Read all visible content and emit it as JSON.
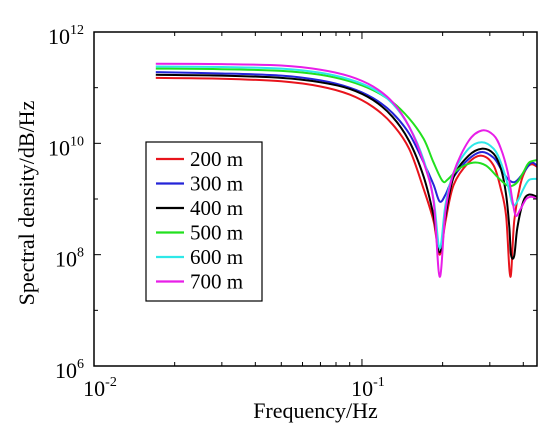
{
  "chart_data": {
    "type": "line",
    "title": "",
    "xlabel": "Frequency/Hz",
    "ylabel": "Spectral density/dB/Hz",
    "x_scale": "log",
    "y_scale": "log",
    "xlim": [
      0.01,
      0.45
    ],
    "ylim": [
      1000000,
      1000000000000
    ],
    "x_ticks": [
      {
        "value": 0.01,
        "base": "10",
        "exp": "-2"
      },
      {
        "value": 0.1,
        "base": "10",
        "exp": "-1"
      }
    ],
    "y_ticks": [
      {
        "value": 1000000,
        "base": "10",
        "exp": "6"
      },
      {
        "value": 100000000,
        "base": "10",
        "exp": "8"
      },
      {
        "value": 10000000000,
        "base": "10",
        "exp": "10"
      },
      {
        "value": 1000000000000,
        "base": "10",
        "exp": "12"
      }
    ],
    "grid": false,
    "legend_position": "middle-left",
    "series": [
      {
        "name": "200 m",
        "color": "#e8141c",
        "points": [
          [
            0.017,
            150000000000
          ],
          [
            0.03,
            145000000000
          ],
          [
            0.05,
            130000000000
          ],
          [
            0.07,
            105000000000
          ],
          [
            0.09,
            75000000000
          ],
          [
            0.11,
            45000000000
          ],
          [
            0.13,
            22000000000
          ],
          [
            0.15,
            8000000000
          ],
          [
            0.17,
            1500000000
          ],
          [
            0.185,
            400000000
          ],
          [
            0.195,
            100000000
          ],
          [
            0.205,
            400000000
          ],
          [
            0.22,
            1800000000
          ],
          [
            0.25,
            4500000000
          ],
          [
            0.28,
            6000000000
          ],
          [
            0.31,
            4000000000
          ],
          [
            0.33,
            1500000000
          ],
          [
            0.345,
            500000000
          ],
          [
            0.358,
            40000000
          ],
          [
            0.37,
            400000000
          ],
          [
            0.39,
            1800000000
          ],
          [
            0.41,
            3500000000
          ],
          [
            0.43,
            4200000000
          ],
          [
            0.45,
            3800000000
          ]
        ]
      },
      {
        "name": "300 m",
        "color": "#2424d8",
        "points": [
          [
            0.017,
            190000000000
          ],
          [
            0.03,
            180000000000
          ],
          [
            0.05,
            165000000000
          ],
          [
            0.07,
            135000000000
          ],
          [
            0.09,
            100000000000
          ],
          [
            0.11,
            65000000000
          ],
          [
            0.13,
            35000000000
          ],
          [
            0.15,
            15000000000
          ],
          [
            0.17,
            4500000000
          ],
          [
            0.185,
            1800000000
          ],
          [
            0.195,
            900000000
          ],
          [
            0.205,
            1200000000
          ],
          [
            0.22,
            2500000000
          ],
          [
            0.25,
            5200000000
          ],
          [
            0.28,
            7000000000
          ],
          [
            0.31,
            5500000000
          ],
          [
            0.33,
            3500000000
          ],
          [
            0.35,
            2300000000
          ],
          [
            0.37,
            2000000000
          ],
          [
            0.39,
            2500000000
          ],
          [
            0.41,
            3500000000
          ],
          [
            0.43,
            4500000000
          ],
          [
            0.45,
            4000000000
          ]
        ]
      },
      {
        "name": "400 m",
        "color": "#000000",
        "points": [
          [
            0.017,
            170000000000
          ],
          [
            0.03,
            165000000000
          ],
          [
            0.05,
            150000000000
          ],
          [
            0.07,
            125000000000
          ],
          [
            0.09,
            95000000000
          ],
          [
            0.11,
            60000000000
          ],
          [
            0.13,
            30000000000
          ],
          [
            0.15,
            11000000000
          ],
          [
            0.17,
            2500000000
          ],
          [
            0.185,
            500000000
          ],
          [
            0.195,
            110000000
          ],
          [
            0.205,
            500000000
          ],
          [
            0.22,
            2500000000
          ],
          [
            0.25,
            6000000000
          ],
          [
            0.28,
            8000000000
          ],
          [
            0.31,
            6500000000
          ],
          [
            0.33,
            3500000000
          ],
          [
            0.345,
            1200000000
          ],
          [
            0.355,
            300000000
          ],
          [
            0.36,
            100000000
          ],
          [
            0.37,
            95000000
          ],
          [
            0.38,
            300000000
          ],
          [
            0.4,
            900000000
          ],
          [
            0.42,
            1200000000
          ],
          [
            0.45,
            1100000000
          ]
        ]
      },
      {
        "name": "500 m",
        "color": "#22e01e",
        "points": [
          [
            0.017,
            220000000000
          ],
          [
            0.03,
            215000000000
          ],
          [
            0.05,
            200000000000
          ],
          [
            0.07,
            170000000000
          ],
          [
            0.09,
            130000000000
          ],
          [
            0.11,
            90000000000
          ],
          [
            0.13,
            55000000000
          ],
          [
            0.15,
            28000000000
          ],
          [
            0.17,
            12000000000
          ],
          [
            0.185,
            4500000000
          ],
          [
            0.2,
            2100000000
          ],
          [
            0.21,
            2300000000
          ],
          [
            0.23,
            3500000000
          ],
          [
            0.26,
            4500000000
          ],
          [
            0.29,
            4000000000
          ],
          [
            0.32,
            2500000000
          ],
          [
            0.345,
            1800000000
          ],
          [
            0.36,
            1700000000
          ],
          [
            0.38,
            2000000000
          ],
          [
            0.4,
            3000000000
          ],
          [
            0.42,
            4500000000
          ],
          [
            0.45,
            5000000000
          ]
        ]
      },
      {
        "name": "600 m",
        "color": "#2ee8e8",
        "points": [
          [
            0.017,
            240000000000
          ],
          [
            0.03,
            235000000000
          ],
          [
            0.05,
            220000000000
          ],
          [
            0.07,
            185000000000
          ],
          [
            0.09,
            140000000000
          ],
          [
            0.11,
            95000000000
          ],
          [
            0.13,
            52000000000
          ],
          [
            0.15,
            20000000000
          ],
          [
            0.17,
            5000000000
          ],
          [
            0.185,
            1000000000
          ],
          [
            0.195,
            130000000
          ],
          [
            0.205,
            800000000
          ],
          [
            0.22,
            3000000000
          ],
          [
            0.25,
            8000000000
          ],
          [
            0.28,
            10500000000
          ],
          [
            0.31,
            8000000000
          ],
          [
            0.33,
            4500000000
          ],
          [
            0.35,
            1800000000
          ],
          [
            0.365,
            800000000
          ],
          [
            0.38,
            900000000
          ],
          [
            0.4,
            1500000000
          ],
          [
            0.42,
            2200000000
          ],
          [
            0.45,
            2300000000
          ]
        ]
      },
      {
        "name": "700 m",
        "color": "#e81ee8",
        "points": [
          [
            0.017,
            270000000000
          ],
          [
            0.03,
            265000000000
          ],
          [
            0.05,
            250000000000
          ],
          [
            0.07,
            210000000000
          ],
          [
            0.09,
            160000000000
          ],
          [
            0.11,
            105000000000
          ],
          [
            0.13,
            55000000000
          ],
          [
            0.15,
            20000000000
          ],
          [
            0.17,
            4500000000
          ],
          [
            0.185,
            900000000
          ],
          [
            0.195,
            40000000
          ],
          [
            0.205,
            600000000
          ],
          [
            0.22,
            3000000000
          ],
          [
            0.25,
            11000000000
          ],
          [
            0.28,
            17000000000
          ],
          [
            0.31,
            14000000000
          ],
          [
            0.33,
            8000000000
          ],
          [
            0.35,
            3000000000
          ],
          [
            0.365,
            900000000
          ],
          [
            0.375,
            500000000
          ],
          [
            0.39,
            650000000
          ],
          [
            0.41,
            1000000000
          ],
          [
            0.43,
            1100000000
          ],
          [
            0.45,
            1000000000
          ]
        ]
      }
    ]
  }
}
